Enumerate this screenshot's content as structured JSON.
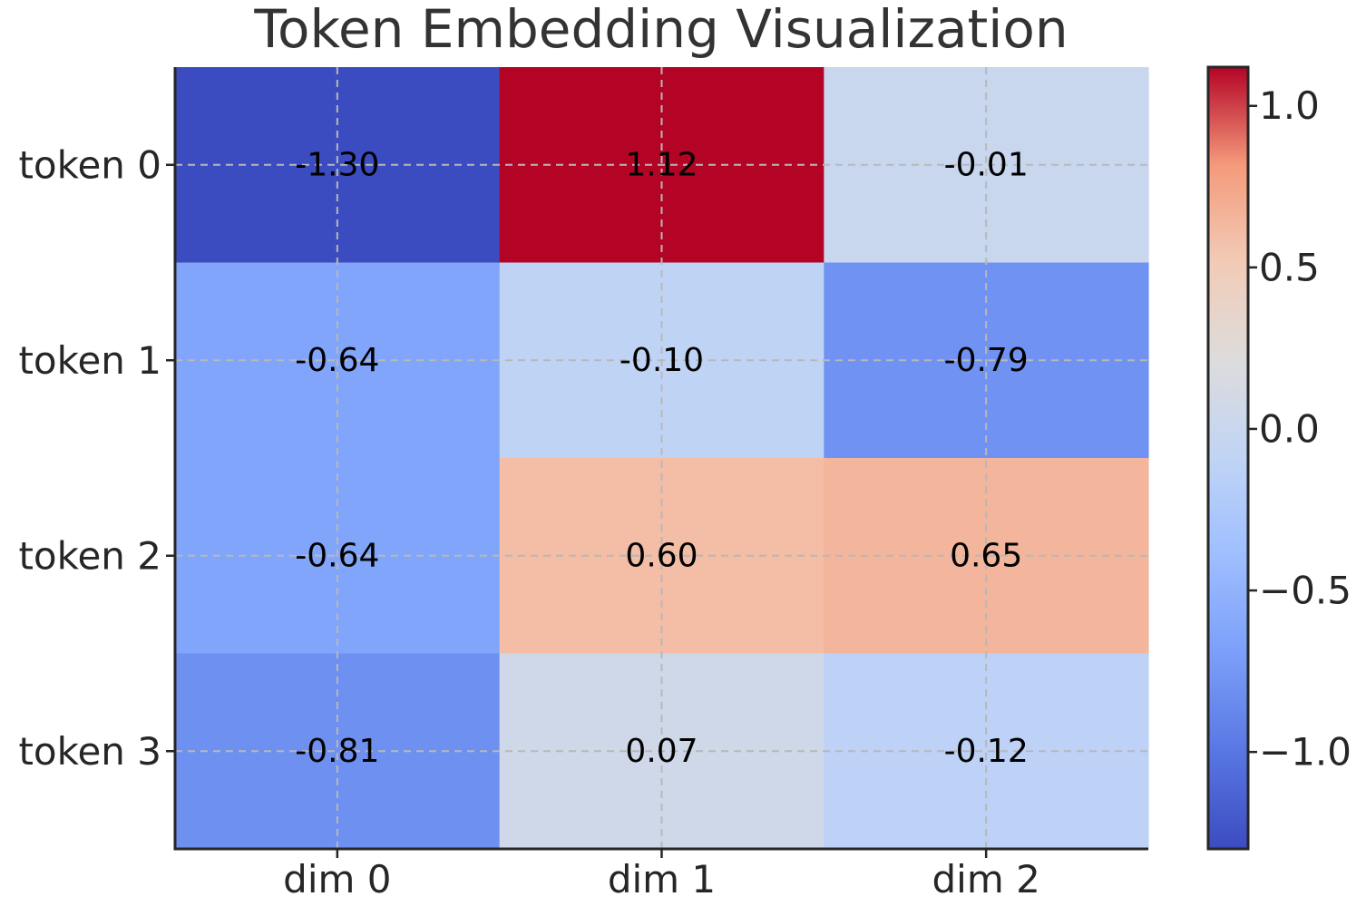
{
  "chart_data": {
    "type": "heatmap",
    "title": "Token Embedding Visualization",
    "xlabel": "",
    "ylabel": "",
    "x_categories": [
      "dim 0",
      "dim 1",
      "dim 2"
    ],
    "y_categories": [
      "token 0",
      "token 1",
      "token 2",
      "token 3"
    ],
    "values": [
      [
        -1.3,
        1.12,
        -0.01
      ],
      [
        -0.64,
        -0.1,
        -0.79
      ],
      [
        -0.64,
        0.6,
        0.65
      ],
      [
        -0.81,
        0.07,
        -0.12
      ]
    ],
    "value_labels": [
      [
        "-1.30",
        "1.12",
        "-0.01"
      ],
      [
        "-0.64",
        "-0.10",
        "-0.79"
      ],
      [
        "-0.64",
        "0.60",
        "0.65"
      ],
      [
        "-0.81",
        "0.07",
        "-0.12"
      ]
    ],
    "colormap": "coolwarm",
    "vmin": -1.3,
    "vmax": 1.12,
    "grid": true,
    "colorbar": {
      "ticks": [
        1.0,
        0.5,
        0.0,
        -0.5,
        -1.0
      ],
      "tick_labels": [
        "1.0",
        "0.5",
        "0.0",
        "−0.5",
        "−1.0"
      ],
      "placement": "right"
    }
  }
}
